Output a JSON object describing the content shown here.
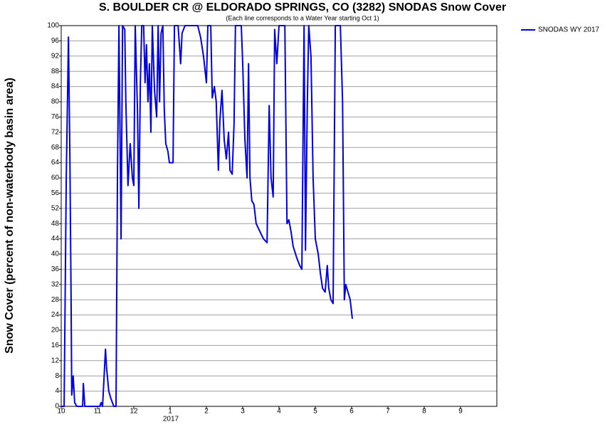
{
  "chart_data": {
    "type": "line",
    "title": "S. BOULDER CR @ ELDORADO SPRINGS, CO (3282) SNODAS Snow Cover",
    "subtitle": "(Each line corresponds to a Water Year starting Oct 1)",
    "y_label": "Snow Cover (percent of non-waterbody basin area)",
    "year_label": "2017",
    "xlim": [
      0,
      12
    ],
    "ylim": [
      0,
      100
    ],
    "xticks": [
      {
        "value": 0,
        "label": "10"
      },
      {
        "value": 1,
        "label": "11"
      },
      {
        "value": 2,
        "label": "12"
      },
      {
        "value": 3,
        "label": "1"
      },
      {
        "value": 4,
        "label": "2"
      },
      {
        "value": 5,
        "label": "3"
      },
      {
        "value": 6,
        "label": "4"
      },
      {
        "value": 7,
        "label": "5"
      },
      {
        "value": 8,
        "label": "6"
      },
      {
        "value": 9,
        "label": "7"
      },
      {
        "value": 10,
        "label": "8"
      },
      {
        "value": 11,
        "label": "9"
      }
    ],
    "yticks": [
      0,
      4,
      8,
      12,
      16,
      20,
      24,
      28,
      32,
      36,
      40,
      44,
      48,
      52,
      56,
      60,
      64,
      68,
      72,
      76,
      80,
      84,
      88,
      92,
      96,
      100
    ],
    "grid": true,
    "legend": "outside-top-right",
    "series": [
      {
        "name": "SNODAS WY 2017",
        "color": "#0000e0",
        "x": [
          0,
          0.08,
          0.14,
          0.2,
          0.24,
          0.27,
          0.29,
          0.33,
          0.37,
          0.43,
          0.59,
          0.61,
          0.65,
          1.06,
          1.1,
          1.14,
          1.22,
          1.25,
          1.31,
          1.37,
          1.45,
          1.51,
          1.55,
          1.59,
          1.65,
          1.69,
          1.75,
          1.78,
          1.84,
          1.9,
          1.96,
          2.0,
          2.04,
          2.1,
          2.14,
          2.18,
          2.22,
          2.27,
          2.31,
          2.35,
          2.39,
          2.43,
          2.47,
          2.51,
          2.57,
          2.63,
          2.67,
          2.71,
          2.75,
          2.8,
          2.84,
          2.88,
          2.94,
          2.98,
          3.08,
          3.12,
          3.22,
          3.29,
          3.33,
          3.41,
          3.61,
          3.76,
          3.84,
          3.92,
          4.0,
          4.04,
          4.12,
          4.16,
          4.22,
          4.27,
          4.33,
          4.37,
          4.43,
          4.49,
          4.55,
          4.61,
          4.65,
          4.71,
          4.76,
          4.8,
          4.9,
          4.96,
          5.0,
          5.06,
          5.12,
          5.16,
          5.2,
          5.25,
          5.31,
          5.37,
          5.47,
          5.57,
          5.67,
          5.73,
          5.78,
          5.84,
          5.88,
          5.94,
          6.0,
          6.1,
          6.16,
          6.22,
          6.27,
          6.33,
          6.39,
          6.49,
          6.57,
          6.63,
          6.69,
          6.73,
          6.78,
          6.82,
          6.88,
          6.94,
          7.0,
          7.08,
          7.14,
          7.2,
          7.27,
          7.33,
          7.37,
          7.43,
          7.49,
          7.55,
          7.63,
          7.69,
          7.75,
          7.8,
          7.84,
          7.9,
          7.96,
          8.02
        ],
        "values": [
          0,
          0,
          60,
          97,
          65,
          30,
          3,
          8,
          1,
          0,
          0,
          6,
          0,
          0,
          1,
          0,
          15,
          10,
          4,
          2,
          0,
          0,
          62,
          100,
          44,
          100,
          99,
          80,
          58,
          69,
          60,
          58,
          100,
          78,
          52,
          85,
          100,
          100,
          85,
          95,
          80,
          90,
          72,
          100,
          83,
          76,
          100,
          80,
          98,
          100,
          78,
          69,
          67,
          64,
          64,
          100,
          100,
          90,
          98,
          100,
          100,
          100,
          97,
          92,
          85,
          100,
          100,
          81,
          84,
          80,
          62,
          75,
          83,
          70,
          65,
          72,
          62,
          61,
          74,
          100,
          100,
          100,
          90,
          70,
          60,
          90,
          60,
          54,
          53,
          48,
          46,
          44,
          43,
          79,
          60,
          55,
          99,
          90,
          100,
          100,
          100,
          48,
          49,
          46,
          42,
          39,
          37,
          36,
          100,
          41,
          80,
          100,
          92,
          60,
          44,
          40,
          35,
          31,
          30,
          37,
          31,
          28,
          27,
          100,
          100,
          100,
          80,
          28,
          32,
          30,
          28,
          23
        ]
      }
    ]
  }
}
